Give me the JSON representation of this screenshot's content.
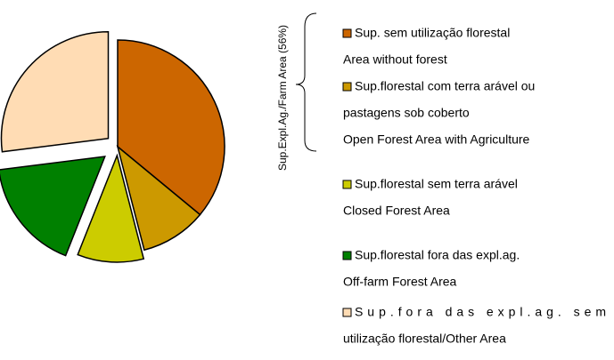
{
  "chart_data": {
    "type": "pie",
    "categories": [
      [
        "Sup. sem utilização florestal",
        "Area without forest"
      ],
      [
        "Sup.florestal com terra arável ou",
        "pastagens sob coberto",
        "Open Forest Area with Agriculture"
      ],
      [
        "Sup.florestal sem terra arável",
        "Closed Forest  Area"
      ],
      [
        "Sup.florestal fora das expl.ag.",
        "Off-farm Forest Area"
      ],
      [
        "Sup.fora das expl.ag. sem",
        "utilização florestal/Other Area"
      ]
    ],
    "values": [
      36,
      10,
      10,
      17,
      27
    ],
    "colors": [
      "#cc6600",
      "#cc9900",
      "#cccc00",
      "#008000",
      "#ffdcb4"
    ],
    "bracket_label": "Sup.Expl.Ag./Farm Area (56%)"
  }
}
